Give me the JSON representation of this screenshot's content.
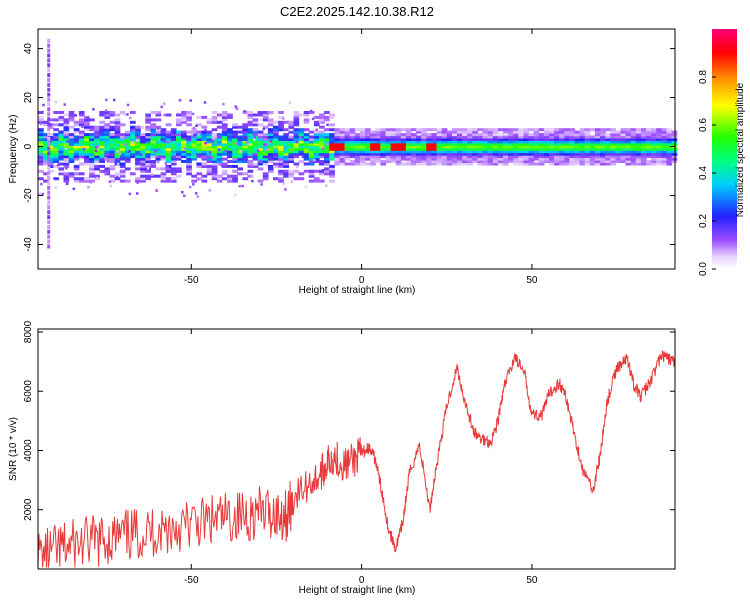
{
  "title": "C2E2.2025.142.10.38.R12",
  "colors": {
    "snr_line": "#e83a3a",
    "axis": "#000000"
  },
  "chart_data": [
    {
      "type": "heatmap",
      "xlabel": "Height of straight line (km)",
      "ylabel": "Frequency (Hz)",
      "xlim": [
        -95,
        92
      ],
      "ylim": [
        -50,
        48
      ],
      "xticks": [
        -50,
        0,
        50
      ],
      "yticks": [
        -40,
        -20,
        0,
        20,
        40
      ],
      "grid": false,
      "colorbar": {
        "label": "Normalized spectral amplitude",
        "range": [
          0,
          1
        ],
        "ticks": [
          0.0,
          0.2,
          0.4,
          0.6,
          0.8
        ],
        "colormap": "rainbow (white-purple-blue-cyan-green-yellow-red-magenta)"
      },
      "features": {
        "band_center_hz": 0,
        "band_halfwidth_hz_left": 6,
        "band_halfwidth_hz_right": 3,
        "strong_peaks_x_km": [
          -8,
          3,
          10,
          20
        ],
        "spur_x_km": -92,
        "spur_frequency_range_hz": [
          -40,
          45
        ]
      }
    },
    {
      "type": "line",
      "xlabel": "Height of straight line (km)",
      "ylabel": "SNR (10 * v/v)",
      "xlim": [
        -95,
        92
      ],
      "ylim": [
        0,
        8100
      ],
      "xticks": [
        -50,
        0,
        50
      ],
      "yticks": [
        2000,
        4000,
        6000,
        8000
      ],
      "grid": false,
      "series": [
        {
          "x": [
            -95,
            -90,
            -85,
            -80,
            -75,
            -70,
            -65,
            -60,
            -55,
            -50,
            -45,
            -40,
            -35,
            -30,
            -25,
            -22,
            -20,
            -15,
            -12,
            -10,
            -8,
            -5,
            -2,
            0,
            2,
            4,
            6,
            8,
            10,
            12,
            14,
            17,
            20,
            22,
            25,
            28,
            30,
            33,
            35,
            38,
            40,
            42,
            45,
            48,
            50,
            53,
            55,
            58,
            60,
            62,
            65,
            68,
            70,
            72,
            75,
            78,
            80,
            82,
            85,
            88,
            90,
            92
          ],
          "y": [
            400,
            600,
            800,
            900,
            1000,
            1100,
            1200,
            1300,
            1400,
            1500,
            1600,
            1700,
            1800,
            1900,
            1900,
            1800,
            2400,
            2900,
            3200,
            3600,
            3800,
            3500,
            3700,
            3900,
            4100,
            3700,
            2600,
            1300,
            700,
            1500,
            3200,
            4200,
            2000,
            3500,
            5500,
            6800,
            5800,
            4600,
            4400,
            4300,
            5000,
            6200,
            7200,
            6500,
            5200,
            5200,
            5900,
            6300,
            5800,
            4800,
            3300,
            2700,
            3800,
            5600,
            6800,
            7100,
            6200,
            5800,
            6400,
            7200,
            7100,
            7000
          ]
        }
      ]
    }
  ]
}
